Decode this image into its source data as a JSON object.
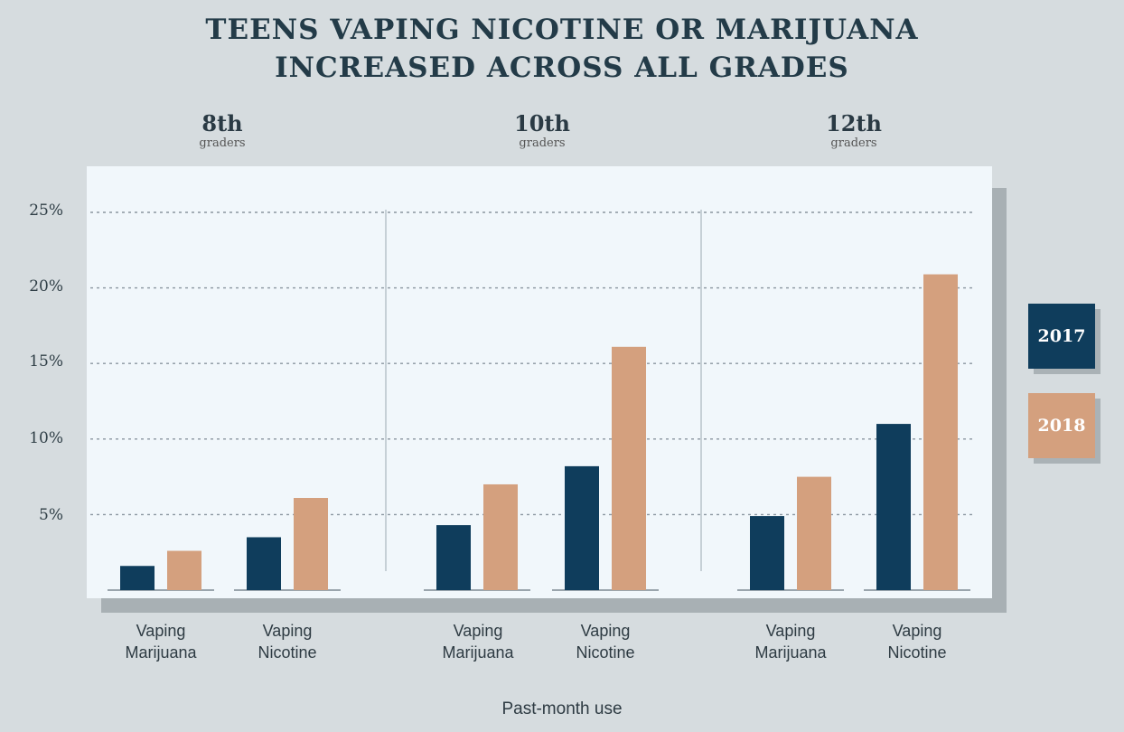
{
  "colors": {
    "y2017": "#0f3d5c",
    "y2018": "#d4a07e"
  },
  "chart_data": {
    "type": "bar",
    "title": [
      "TEENS VAPING NICOTINE OR MARIJUANA",
      "INCREASED ACROSS ALL GRADES"
    ],
    "xlabel": "Past-month use",
    "ylabel": "",
    "ylim": [
      0,
      25
    ],
    "yticks": [
      "5%",
      "10%",
      "15%",
      "20%",
      "25%"
    ],
    "grid": true,
    "legend_position": "right",
    "panels": [
      {
        "grade": "8th",
        "sub": "graders"
      },
      {
        "grade": "10th",
        "sub": "graders"
      },
      {
        "grade": "12th",
        "sub": "graders"
      }
    ],
    "categories": [
      "Vaping Marijuana",
      "Vaping Nicotine",
      "Vaping Marijuana",
      "Vaping Nicotine",
      "Vaping Marijuana",
      "Vaping Nicotine"
    ],
    "category_lines": [
      [
        "Vaping",
        "Marijuana"
      ],
      [
        "Vaping",
        "Nicotine"
      ],
      [
        "Vaping",
        "Marijuana"
      ],
      [
        "Vaping",
        "Nicotine"
      ],
      [
        "Vaping",
        "Marijuana"
      ],
      [
        "Vaping",
        "Nicotine"
      ]
    ],
    "series": [
      {
        "name": "2017",
        "values": [
          1.6,
          3.5,
          4.3,
          8.2,
          4.9,
          11.0
        ]
      },
      {
        "name": "2018",
        "values": [
          2.6,
          6.1,
          7.0,
          16.1,
          7.5,
          20.9
        ]
      }
    ]
  }
}
